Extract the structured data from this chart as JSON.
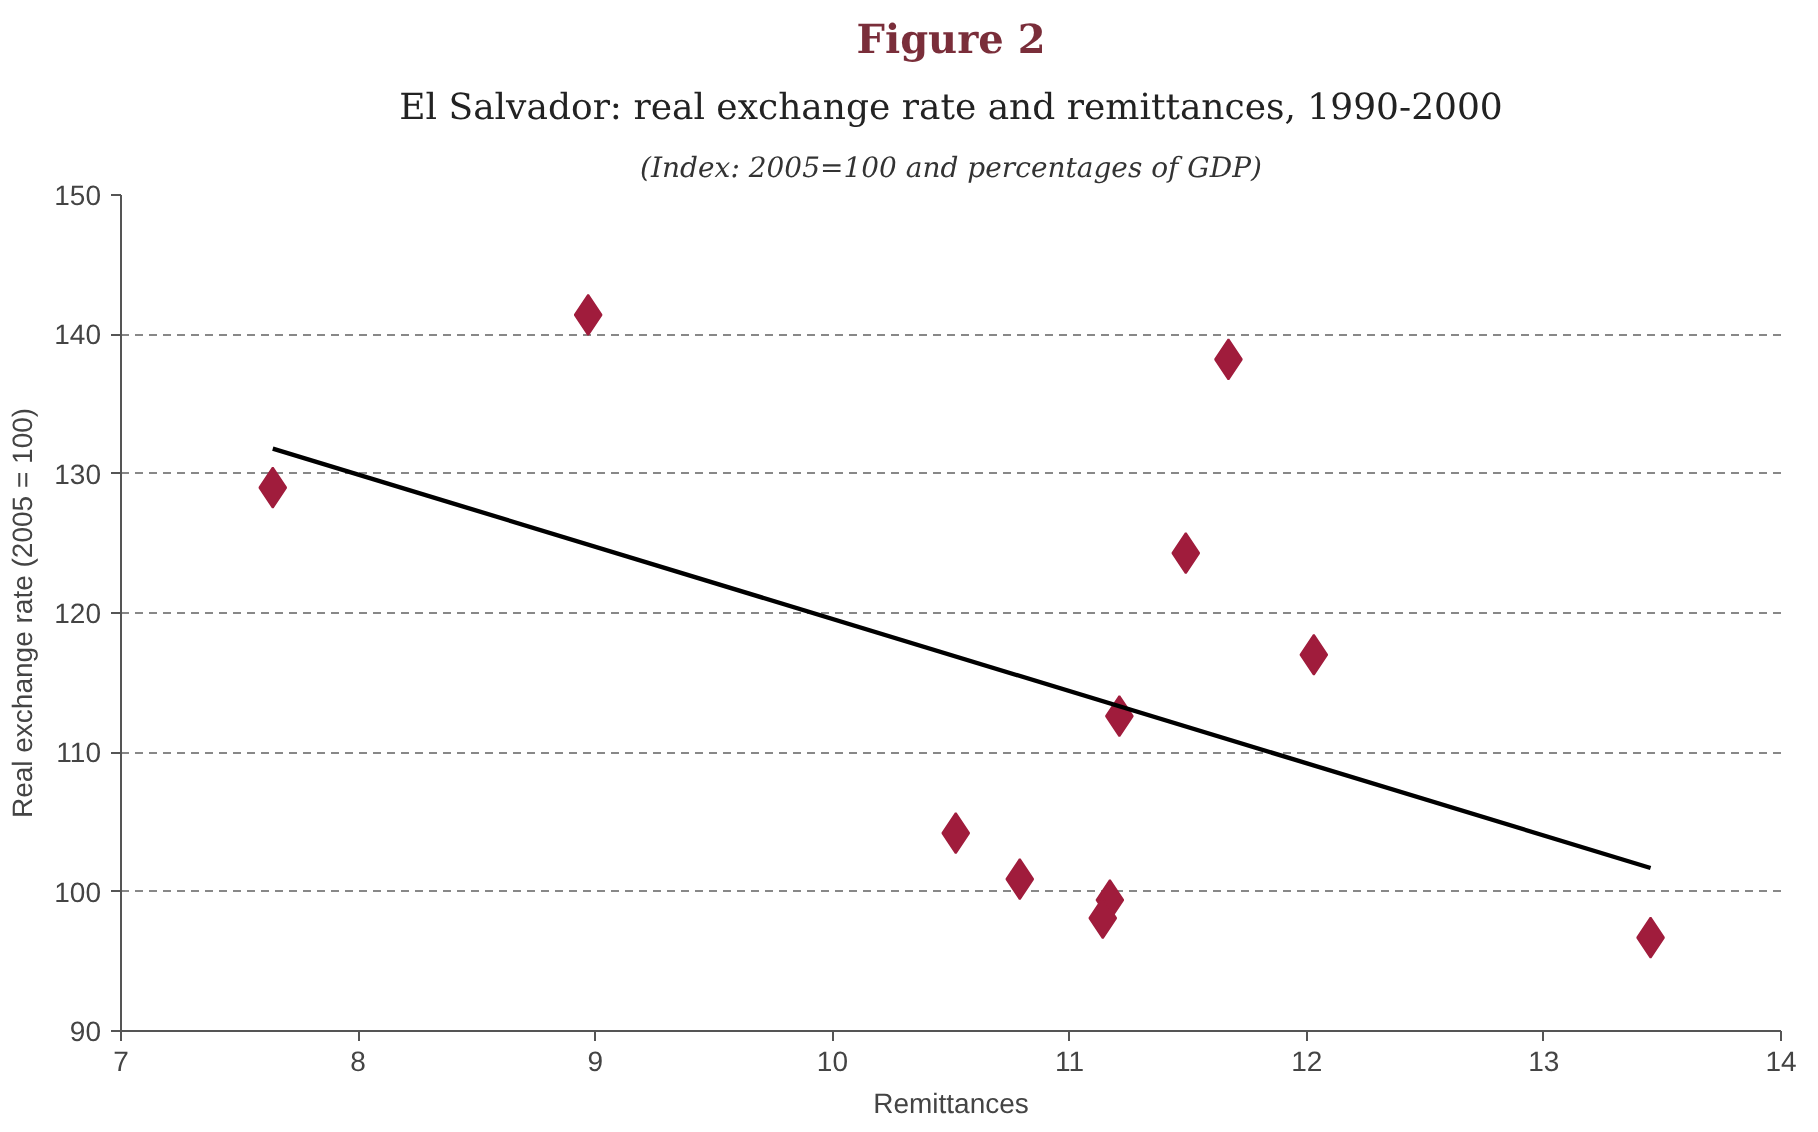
{
  "chart_data": {
    "type": "scatter",
    "title": "Figure 2",
    "subtitle": "El Salvador: real exchange rate and remittances, 1990-2000",
    "annotations": [
      "(Index: 2005=100 and percentages of GDP)"
    ],
    "xlabel": "Remittances",
    "ylabel": "Real exchange rate (2005 = 100)",
    "xlim": [
      7,
      14
    ],
    "xticks": [
      7,
      8,
      9,
      10,
      11,
      12,
      13,
      14
    ],
    "ylim": [
      90,
      150
    ],
    "yticks": [
      90,
      100,
      110,
      120,
      130,
      140,
      150
    ],
    "grid": "y",
    "series": [
      {
        "marker": "diamond",
        "color": "#a01c3c",
        "x": [
          7.64,
          8.97,
          11.67,
          11.49,
          12.03,
          11.21,
          10.52,
          10.79,
          11.17,
          11.14,
          13.45
        ],
        "values": [
          129.0,
          141.4,
          138.2,
          124.3,
          117.0,
          112.6,
          104.2,
          100.9,
          99.4,
          98.1,
          96.7
        ]
      },
      {
        "type": "line",
        "line_style": "solid",
        "color": "#000000",
        "x": [
          7.64,
          13.45
        ],
        "values": [
          131.8,
          101.7
        ]
      }
    ]
  }
}
